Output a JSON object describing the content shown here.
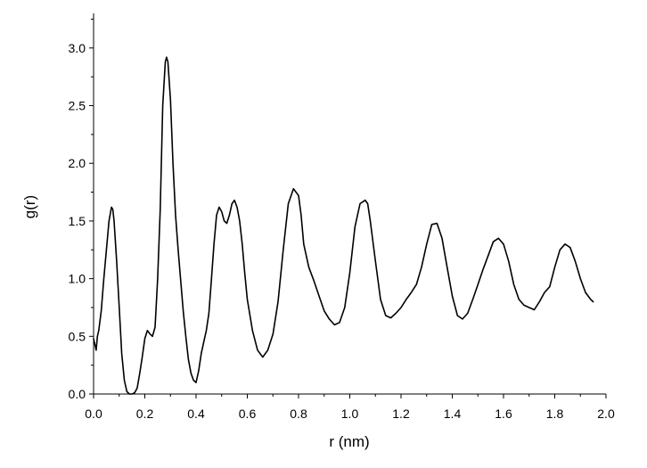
{
  "chart_data": {
    "type": "line",
    "title": "",
    "xlabel": "r (nm)",
    "ylabel": "g(r)",
    "xlim": [
      0.0,
      2.0
    ],
    "ylim": [
      0.0,
      3.3
    ],
    "grid": false,
    "legend": "none",
    "line_color": "#000000",
    "x_ticks": [
      "0.0",
      "0.2",
      "0.4",
      "0.6",
      "0.8",
      "1.0",
      "1.2",
      "1.4",
      "1.6",
      "1.8",
      "2.0"
    ],
    "y_ticks": [
      "0.0",
      "0.5",
      "1.0",
      "1.5",
      "2.0",
      "2.5",
      "3.0"
    ],
    "series": [
      {
        "x": [
          0.0,
          0.01,
          0.015,
          0.02,
          0.03,
          0.04,
          0.05,
          0.06,
          0.07,
          0.075,
          0.08,
          0.09,
          0.1,
          0.11,
          0.12,
          0.13,
          0.14,
          0.15,
          0.16,
          0.17,
          0.18,
          0.19,
          0.2,
          0.21,
          0.22,
          0.23,
          0.24,
          0.25,
          0.26,
          0.27,
          0.28,
          0.285,
          0.29,
          0.3,
          0.31,
          0.32,
          0.33,
          0.34,
          0.35,
          0.36,
          0.37,
          0.38,
          0.39,
          0.4,
          0.41,
          0.42,
          0.43,
          0.44,
          0.45,
          0.46,
          0.47,
          0.48,
          0.49,
          0.5,
          0.51,
          0.52,
          0.53,
          0.54,
          0.55,
          0.56,
          0.57,
          0.58,
          0.59,
          0.6,
          0.62,
          0.64,
          0.66,
          0.68,
          0.7,
          0.72,
          0.74,
          0.76,
          0.78,
          0.8,
          0.81,
          0.82,
          0.84,
          0.86,
          0.88,
          0.9,
          0.92,
          0.94,
          0.96,
          0.98,
          1.0,
          1.02,
          1.04,
          1.06,
          1.07,
          1.08,
          1.1,
          1.12,
          1.14,
          1.16,
          1.18,
          1.2,
          1.22,
          1.24,
          1.26,
          1.28,
          1.3,
          1.32,
          1.34,
          1.36,
          1.38,
          1.4,
          1.42,
          1.44,
          1.46,
          1.48,
          1.5,
          1.52,
          1.54,
          1.56,
          1.58,
          1.6,
          1.62,
          1.64,
          1.66,
          1.68,
          1.7,
          1.72,
          1.74,
          1.76,
          1.78,
          1.8,
          1.82,
          1.84,
          1.86,
          1.88,
          1.9,
          1.92,
          1.94,
          1.95
        ],
        "y": [
          0.48,
          0.38,
          0.5,
          0.55,
          0.72,
          1.0,
          1.25,
          1.5,
          1.62,
          1.6,
          1.5,
          1.15,
          0.75,
          0.35,
          0.12,
          0.02,
          0.0,
          0.0,
          0.01,
          0.05,
          0.18,
          0.32,
          0.48,
          0.55,
          0.52,
          0.5,
          0.58,
          1.0,
          1.6,
          2.5,
          2.88,
          2.92,
          2.88,
          2.55,
          2.0,
          1.55,
          1.25,
          0.98,
          0.72,
          0.5,
          0.3,
          0.18,
          0.12,
          0.1,
          0.2,
          0.35,
          0.45,
          0.55,
          0.7,
          1.0,
          1.3,
          1.55,
          1.62,
          1.58,
          1.5,
          1.48,
          1.55,
          1.65,
          1.68,
          1.62,
          1.5,
          1.3,
          1.05,
          0.82,
          0.55,
          0.38,
          0.32,
          0.38,
          0.52,
          0.8,
          1.25,
          1.65,
          1.78,
          1.72,
          1.55,
          1.3,
          1.1,
          0.98,
          0.85,
          0.72,
          0.65,
          0.6,
          0.62,
          0.75,
          1.05,
          1.45,
          1.65,
          1.68,
          1.65,
          1.5,
          1.15,
          0.82,
          0.68,
          0.66,
          0.7,
          0.75,
          0.82,
          0.88,
          0.95,
          1.1,
          1.3,
          1.47,
          1.48,
          1.35,
          1.1,
          0.85,
          0.68,
          0.65,
          0.7,
          0.82,
          0.95,
          1.08,
          1.2,
          1.32,
          1.35,
          1.3,
          1.15,
          0.95,
          0.82,
          0.77,
          0.75,
          0.73,
          0.8,
          0.88,
          0.93,
          1.1,
          1.25,
          1.3,
          1.27,
          1.15,
          1.0,
          0.88,
          0.82,
          0.8
        ]
      }
    ]
  }
}
